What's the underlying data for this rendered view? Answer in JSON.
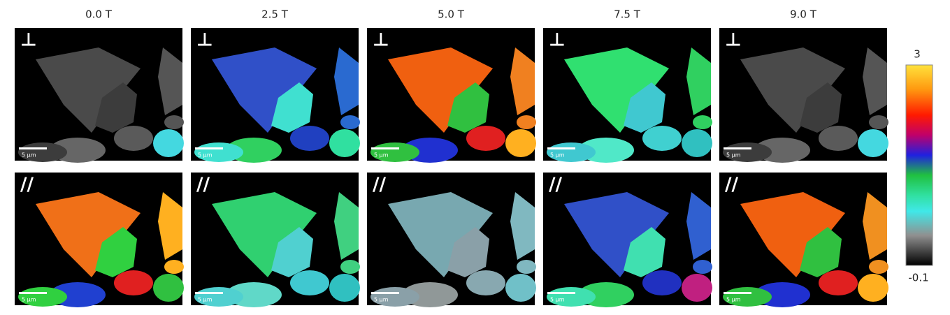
{
  "columns": [
    "0.0 T",
    "2.5 T",
    "5.0 T",
    "7.5 T",
    "9.0 T"
  ],
  "rows": [
    {
      "marker": "⊥"
    },
    {
      "marker": "//"
    }
  ],
  "scale_bar": "5 μm",
  "colorbar": {
    "max": "3",
    "min": "-0.1"
  }
}
